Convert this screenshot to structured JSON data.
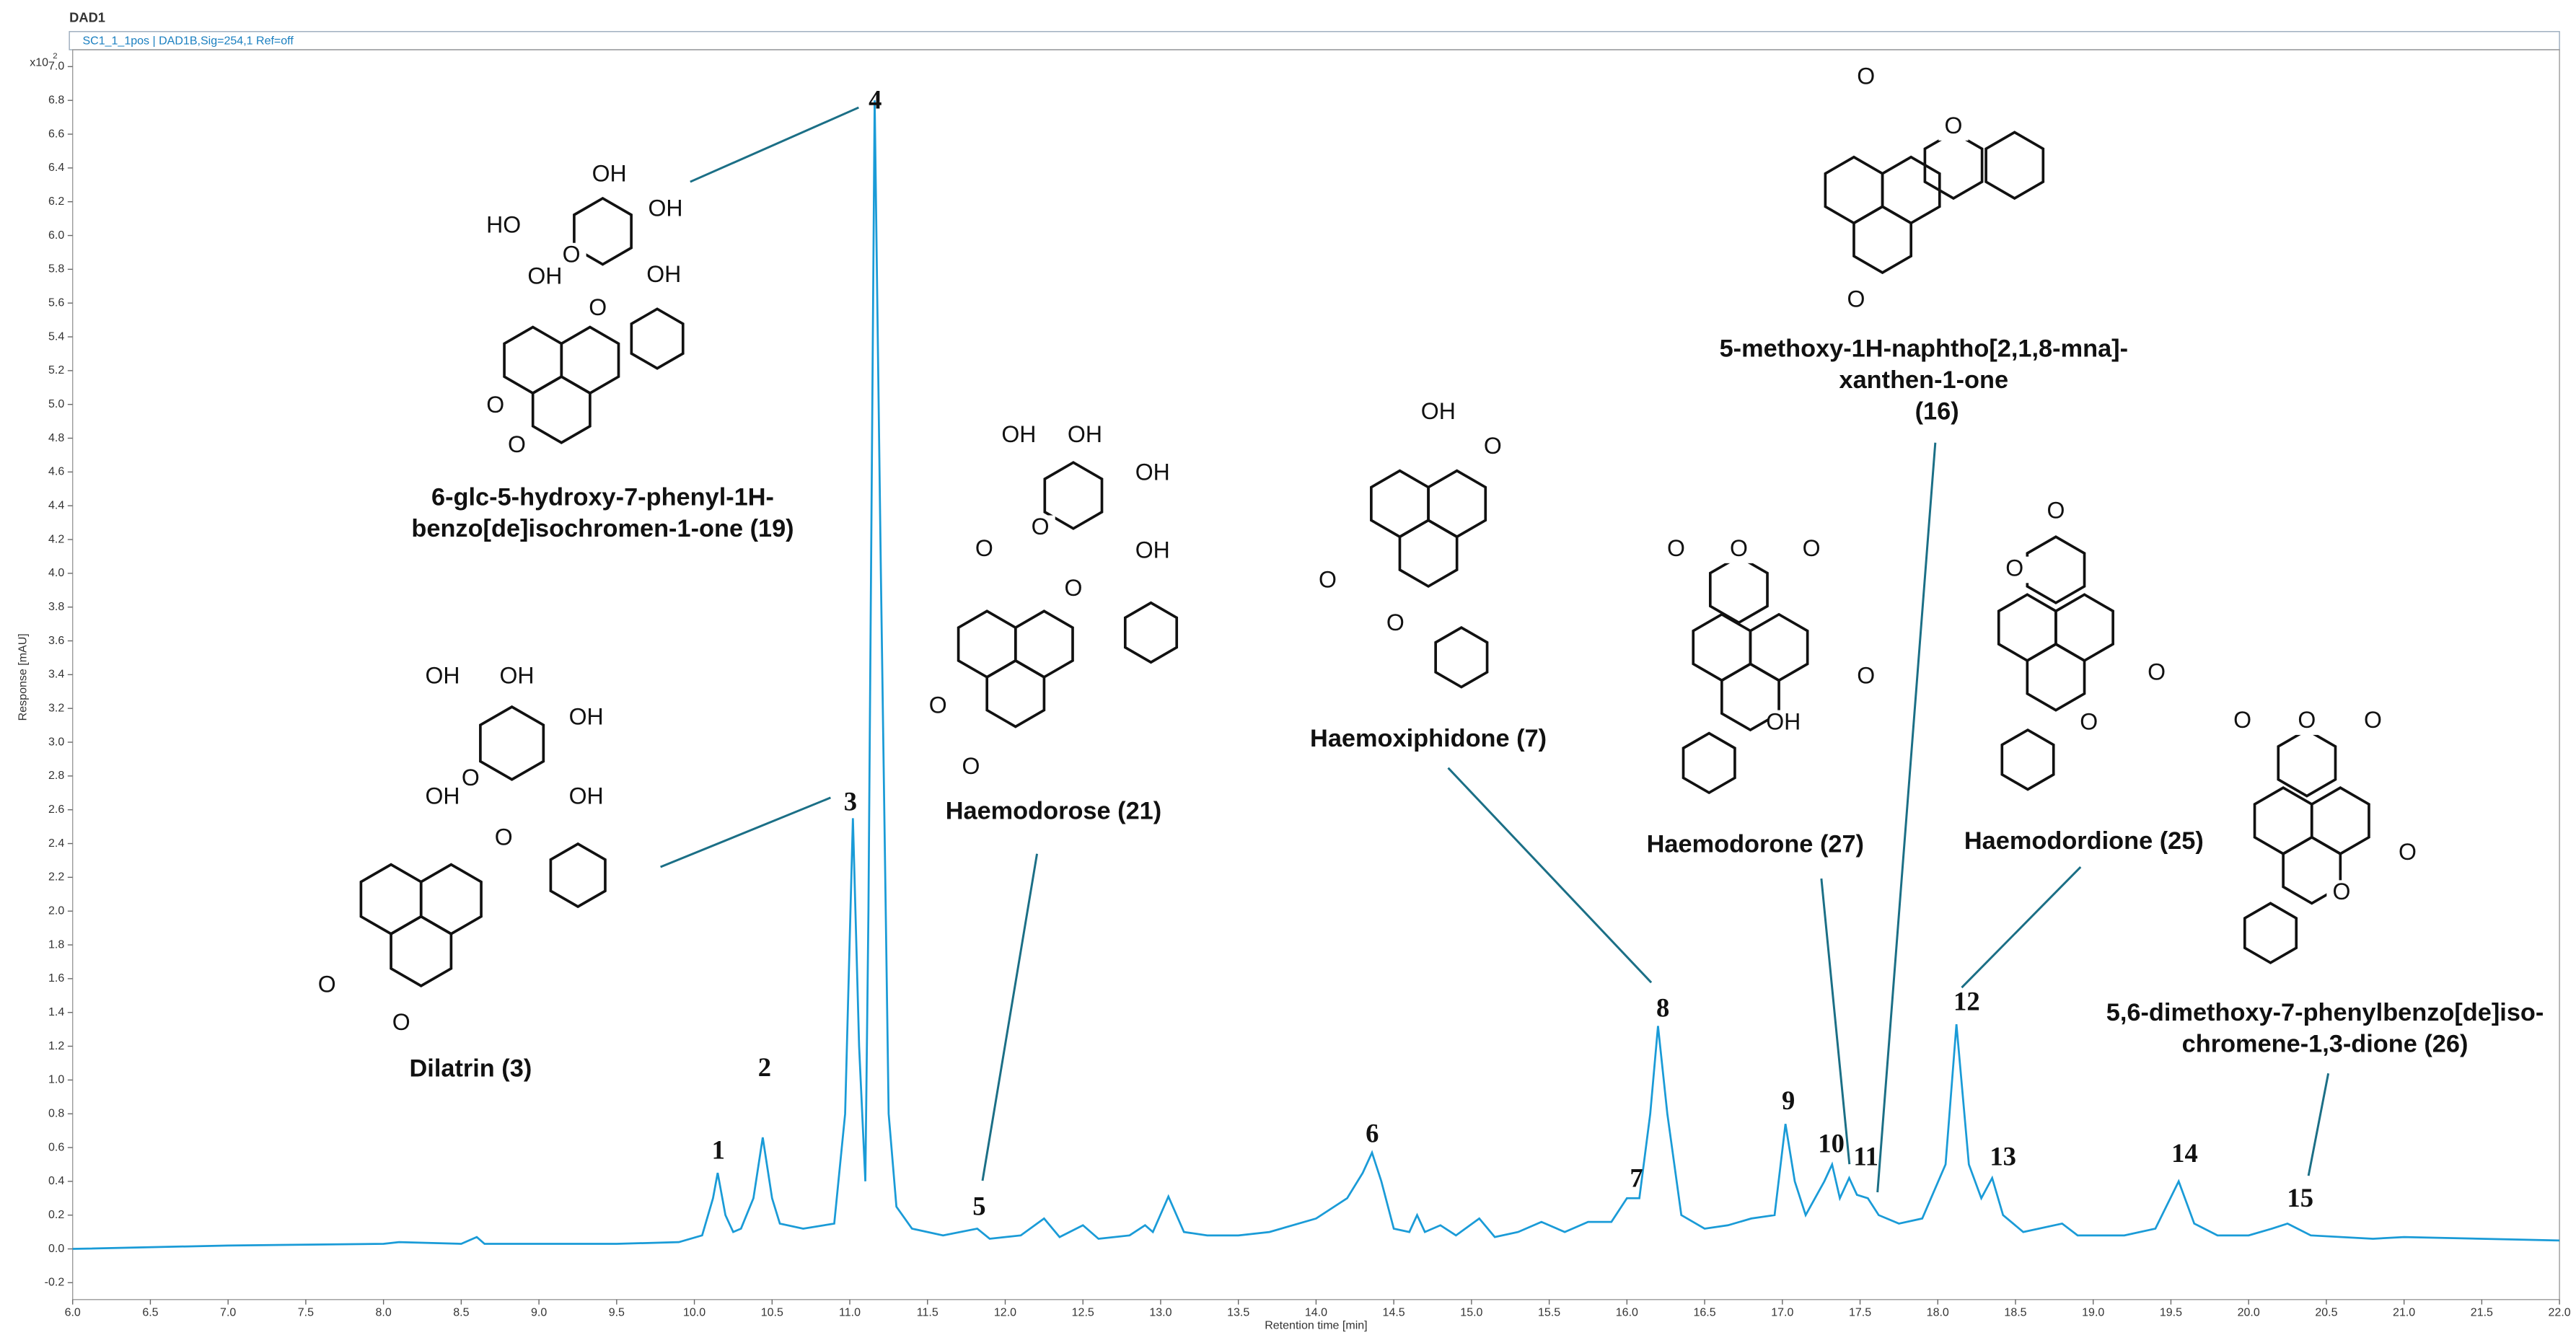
{
  "chart_data": {
    "type": "line",
    "title": "DAD1",
    "subtitle": "SC1_1_1pos | DAD1B,Sig=254,1 Ref=off",
    "y_scale_base": "x10",
    "y_scale_exponent": "2",
    "xlabel": "Retention time [min]",
    "ylabel": "Response [mAU]",
    "color": "#1a9bd7",
    "grid": false,
    "xlim": [
      6,
      22
    ],
    "ylim": [
      -0.3,
      7.1
    ],
    "xticks": [
      {
        "value": 6,
        "label": "6.0"
      },
      6.5,
      {
        "value": 7,
        "label": "7.0"
      },
      7.5,
      {
        "value": 8,
        "label": "8.0"
      },
      8.5,
      {
        "value": 9,
        "label": "9.0"
      },
      9.5,
      {
        "value": 10,
        "label": "10.0"
      },
      10.5,
      {
        "value": 11,
        "label": "11.0"
      },
      11.5,
      {
        "value": 12,
        "label": "12.0"
      },
      12.5,
      {
        "value": 13,
        "label": "13.0"
      },
      13.5,
      {
        "value": 14,
        "label": "14.0"
      },
      14.5,
      {
        "value": 15,
        "label": "15.0"
      },
      15.5,
      {
        "value": 16,
        "label": "16.0"
      },
      16.5,
      {
        "value": 17,
        "label": "17.0"
      },
      17.5,
      {
        "value": 18,
        "label": "18.0"
      },
      18.5,
      {
        "value": 19,
        "label": "19.0"
      },
      19.5,
      {
        "value": 20,
        "label": "20.0"
      },
      20.5,
      {
        "value": 21,
        "label": "21.0"
      },
      21.5,
      {
        "value": 22,
        "label": "22.0"
      }
    ],
    "yticks": [
      -0.2,
      {
        "value": 0,
        "label": "0.0"
      },
      0.2,
      0.4,
      0.6,
      0.8,
      {
        "value": 1,
        "label": "1.0"
      },
      1.2,
      1.4,
      1.6,
      1.8,
      {
        "value": 2,
        "label": "2.0"
      },
      2.2,
      2.4,
      2.6,
      2.8,
      {
        "value": 3,
        "label": "3.0"
      },
      3.2,
      3.4,
      3.6,
      3.8,
      {
        "value": 4,
        "label": "4.0"
      },
      4.2,
      4.4,
      4.6,
      4.8,
      {
        "value": 5,
        "label": "5.0"
      },
      5.2,
      5.4,
      5.6,
      5.8,
      {
        "value": 6,
        "label": "6.0"
      },
      6.2,
      6.4,
      6.6,
      6.8,
      {
        "value": 7,
        "label": "7.0"
      }
    ],
    "x": [
      6.0,
      7.0,
      8.0,
      8.1,
      8.5,
      8.6,
      8.65,
      9.0,
      9.5,
      9.9,
      10.05,
      10.12,
      10.15,
      10.2,
      10.25,
      10.3,
      10.38,
      10.44,
      10.5,
      10.55,
      10.7,
      10.9,
      10.97,
      11.02,
      11.06,
      11.1,
      11.12,
      11.16,
      11.2,
      11.25,
      11.3,
      11.4,
      11.6,
      11.82,
      11.9,
      12.1,
      12.25,
      12.35,
      12.5,
      12.6,
      12.8,
      12.9,
      12.95,
      13.05,
      13.15,
      13.3,
      13.5,
      13.7,
      14.0,
      14.2,
      14.3,
      14.36,
      14.42,
      14.5,
      14.6,
      14.65,
      14.7,
      14.8,
      14.9,
      15.05,
      15.15,
      15.3,
      15.45,
      15.6,
      15.75,
      15.9,
      16.0,
      16.08,
      16.15,
      16.2,
      16.26,
      16.35,
      16.5,
      16.65,
      16.8,
      16.95,
      17.02,
      17.08,
      17.15,
      17.27,
      17.32,
      17.37,
      17.43,
      17.48,
      17.55,
      17.62,
      17.75,
      17.9,
      18.05,
      18.12,
      18.2,
      18.28,
      18.35,
      18.42,
      18.55,
      18.8,
      18.9,
      19.2,
      19.4,
      19.55,
      19.65,
      19.8,
      20.0,
      20.15,
      20.25,
      20.4,
      20.8,
      21.0,
      21.5,
      22.0
    ],
    "values": [
      0.0,
      0.02,
      0.03,
      0.04,
      0.03,
      0.07,
      0.03,
      0.03,
      0.03,
      0.04,
      0.08,
      0.3,
      0.45,
      0.2,
      0.1,
      0.12,
      0.3,
      0.66,
      0.3,
      0.15,
      0.12,
      0.15,
      0.8,
      2.55,
      1.2,
      0.4,
      2.0,
      6.8,
      4.0,
      0.8,
      0.25,
      0.12,
      0.08,
      0.12,
      0.06,
      0.08,
      0.18,
      0.07,
      0.14,
      0.06,
      0.08,
      0.14,
      0.1,
      0.31,
      0.1,
      0.08,
      0.08,
      0.1,
      0.18,
      0.3,
      0.45,
      0.57,
      0.4,
      0.12,
      0.1,
      0.2,
      0.1,
      0.14,
      0.08,
      0.18,
      0.07,
      0.1,
      0.16,
      0.1,
      0.16,
      0.16,
      0.3,
      0.3,
      0.8,
      1.32,
      0.8,
      0.2,
      0.12,
      0.14,
      0.18,
      0.2,
      0.74,
      0.4,
      0.2,
      0.4,
      0.5,
      0.3,
      0.42,
      0.32,
      0.3,
      0.2,
      0.15,
      0.18,
      0.5,
      1.33,
      0.5,
      0.3,
      0.42,
      0.2,
      0.1,
      0.15,
      0.08,
      0.08,
      0.12,
      0.4,
      0.15,
      0.08,
      0.08,
      0.12,
      0.15,
      0.08,
      0.06,
      0.07,
      0.06,
      0.05
    ],
    "peak_labels": [
      "1",
      "2",
      "3",
      "4",
      "5",
      "6",
      "7",
      "8",
      "9",
      "10",
      "11",
      "12",
      "13",
      "14",
      "15"
    ],
    "compounds": [
      {
        "name": [
          "6-glc-5-hydroxy-7-phenyl-1H-",
          "benzo[de]isochromen-1-one (19)"
        ],
        "atoms": [
          "HO",
          "OH",
          "OH",
          "OH",
          "O",
          "OH",
          "O",
          "O",
          "O"
        ]
      },
      {
        "name": [
          "Dilatrin (3)"
        ],
        "atoms": [
          "OH",
          "OH",
          "OH",
          "OH",
          "O",
          "OH",
          "O",
          "O",
          "O"
        ]
      },
      {
        "name": [
          "Haemodorose (21)"
        ],
        "atoms": [
          "OH",
          "OH",
          "OH",
          "OH",
          "O",
          "O",
          "O",
          "O",
          "O"
        ]
      },
      {
        "name": [
          "Haemoxiphidone (7)"
        ],
        "atoms": [
          "OH",
          "O",
          "O",
          "O"
        ]
      },
      {
        "name": [
          "5-methoxy-1H-naphtho[2,1,8-mna]-",
          "xanthen-1-one",
          "(16)"
        ],
        "atoms": [
          "O",
          "O",
          "O"
        ]
      },
      {
        "name": [
          "Haemodorone (27)"
        ],
        "atoms": [
          "O",
          "O",
          "O",
          "O",
          "OH"
        ]
      },
      {
        "name": [
          "Haemodordione (25)"
        ],
        "atoms": [
          "O",
          "O",
          "O",
          "O"
        ]
      },
      {
        "name": [
          "5,6-dimethoxy-7-phenylbenzo[de]iso-",
          "chromene-1,3-dione (26)"
        ],
        "atoms": [
          "O",
          "O",
          "O",
          "O",
          "O"
        ]
      }
    ]
  }
}
